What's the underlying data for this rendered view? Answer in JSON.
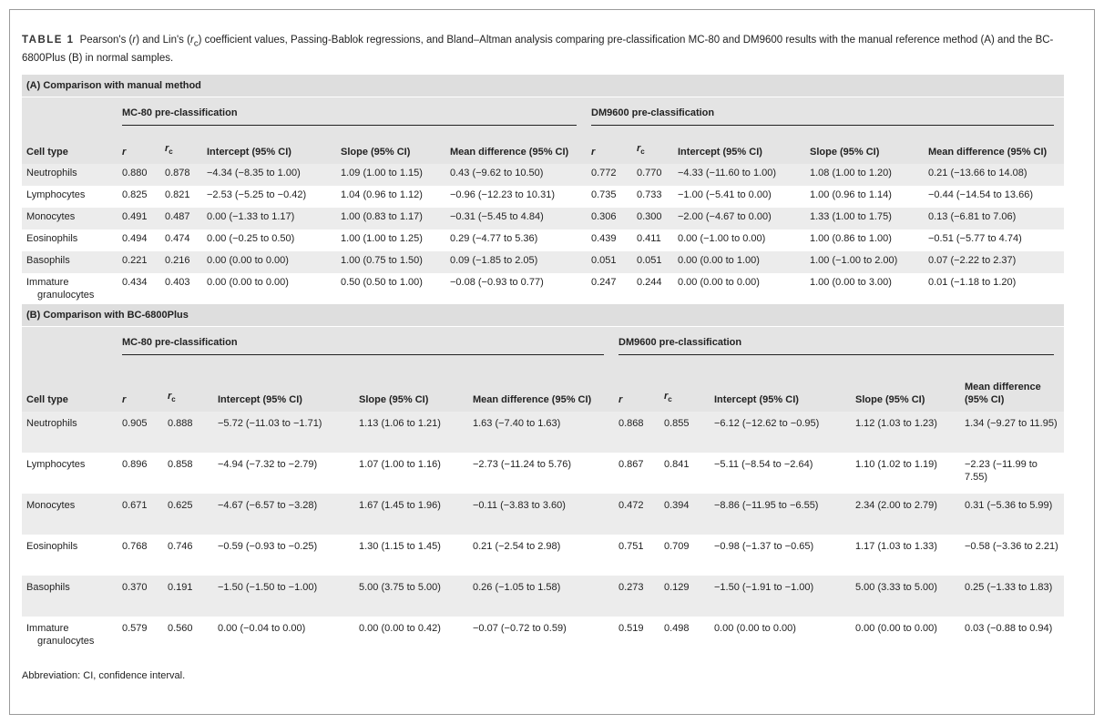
{
  "caption": {
    "label": "TABLE 1",
    "parts": [
      "Pearson's (",
      "r",
      ") and Lin's (",
      "r",
      "c",
      ") coefficient values, Passing-Bablok regressions, and Bland–Altman analysis comparing pre-classification MC-80 and DM9600 results with the manual reference method (A) and the BC-6800Plus (B) in normal samples."
    ]
  },
  "sections": [
    {
      "title": "(A) Comparison with manual method",
      "groups": [
        "MC-80 pre-classification",
        "DM9600 pre-classification"
      ],
      "columns": [
        "Cell type",
        "r",
        {
          "text": "r",
          "sub": "c"
        },
        "Intercept (95% CI)",
        "Slope (95% CI)",
        "Mean difference (95% CI)",
        "r",
        {
          "text": "r",
          "sub": "c"
        },
        "Intercept (95% CI)",
        "Slope (95% CI)",
        "Mean difference (95% CI)"
      ],
      "rows": [
        [
          "Neutrophils",
          "0.880",
          "0.878",
          "−4.34 (−8.35 to 1.00)",
          "1.09 (1.00 to 1.15)",
          "0.43 (−9.62 to 10.50)",
          "0.772",
          "0.770",
          "−4.33 (−11.60 to 1.00)",
          "1.08 (1.00 to 1.20)",
          "0.21 (−13.66 to 14.08)"
        ],
        [
          "Lymphocytes",
          "0.825",
          "0.821",
          "−2.53 (−5.25 to −0.42)",
          "1.04 (0.96 to 1.12)",
          "−0.96 (−12.23 to 10.31)",
          "0.735",
          "0.733",
          "−1.00 (−5.41 to 0.00)",
          "1.00 (0.96 to 1.14)",
          "−0.44 (−14.54 to 13.66)"
        ],
        [
          "Monocytes",
          "0.491",
          "0.487",
          "0.00 (−1.33 to 1.17)",
          "1.00 (0.83 to 1.17)",
          "−0.31 (−5.45 to 4.84)",
          "0.306",
          "0.300",
          "−2.00 (−4.67 to 0.00)",
          "1.33 (1.00 to 1.75)",
          "0.13 (−6.81 to 7.06)"
        ],
        [
          "Eosinophils",
          "0.494",
          "0.474",
          "0.00 (−0.25 to 0.50)",
          "1.00 (1.00 to 1.25)",
          "0.29 (−4.77 to 5.36)",
          "0.439",
          "0.411",
          "0.00 (−1.00 to 0.00)",
          "1.00 (0.86 to 1.00)",
          "−0.51 (−5.77 to 4.74)"
        ],
        [
          "Basophils",
          "0.221",
          "0.216",
          "0.00 (0.00 to 0.00)",
          "1.00 (0.75 to 1.50)",
          "0.09 (−1.85 to 2.05)",
          "0.051",
          "0.051",
          "0.00 (0.00 to 1.00)",
          "1.00 (−1.00 to 2.00)",
          "0.07 (−2.22 to 2.37)"
        ],
        [
          "Immature granulocytes",
          "0.434",
          "0.403",
          "0.00 (0.00 to 0.00)",
          "0.50 (0.50 to 1.00)",
          "−0.08 (−0.93 to 0.77)",
          "0.247",
          "0.244",
          "0.00 (0.00 to 0.00)",
          "1.00 (0.00 to 3.00)",
          "0.01 (−1.18 to 1.20)"
        ]
      ]
    },
    {
      "title": "(B) Comparison with BC-6800Plus",
      "groups": [
        "MC-80 pre-classification",
        "DM9600 pre-classification"
      ],
      "columns": [
        "Cell type",
        "r",
        {
          "text": "r",
          "sub": "c"
        },
        "Intercept (95% CI)",
        "Slope (95% CI)",
        "Mean difference (95% CI)",
        "r",
        {
          "text": "r",
          "sub": "c"
        },
        "Intercept (95% CI)",
        "Slope (95% CI)",
        "Mean difference (95% CI)"
      ],
      "rows": [
        [
          "Neutrophils",
          "0.905",
          "0.888",
          "−5.72 (−11.03 to −1.71)",
          "1.13 (1.06 to 1.21)",
          "1.63 (−7.40 to 1.63)",
          "0.868",
          "0.855",
          "−6.12 (−12.62 to −0.95)",
          "1.12 (1.03 to 1.23)",
          "1.34 (−9.27 to 11.95)"
        ],
        [
          "Lymphocytes",
          "0.896",
          "0.858",
          "−4.94 (−7.32 to −2.79)",
          "1.07 (1.00 to 1.16)",
          "−2.73 (−11.24 to 5.76)",
          "0.867",
          "0.841",
          "−5.11 (−8.54 to −2.64)",
          "1.10 (1.02 to 1.19)",
          "−2.23 (−11.99 to 7.55)"
        ],
        [
          "Monocytes",
          "0.671",
          "0.625",
          "−4.67 (−6.57 to −3.28)",
          "1.67 (1.45 to 1.96)",
          "−0.11 (−3.83 to 3.60)",
          "0.472",
          "0.394",
          "−8.86 (−11.95 to −6.55)",
          "2.34 (2.00 to 2.79)",
          "0.31 (−5.36 to 5.99)"
        ],
        [
          "Eosinophils",
          "0.768",
          "0.746",
          "−0.59 (−0.93 to −0.25)",
          "1.30 (1.15 to 1.45)",
          "0.21 (−2.54 to 2.98)",
          "0.751",
          "0.709",
          "−0.98 (−1.37 to −0.65)",
          "1.17 (1.03 to 1.33)",
          "−0.58 (−3.36 to 2.21)"
        ],
        [
          "Basophils",
          "0.370",
          "0.191",
          "−1.50 (−1.50 to −1.00)",
          "5.00 (3.75 to 5.00)",
          "0.26 (−1.05 to 1.58)",
          "0.273",
          "0.129",
          "−1.50 (−1.91 to −1.00)",
          "5.00 (3.33 to 5.00)",
          "0.25 (−1.33 to 1.83)"
        ],
        [
          "Immature granulocytes",
          "0.579",
          "0.560",
          "0.00 (−0.04 to 0.00)",
          "0.00 (0.00 to 0.42)",
          "−0.07 (−0.72 to 0.59)",
          "0.519",
          "0.498",
          "0.00 (0.00 to 0.00)",
          "0.00 (0.00 to 0.00)",
          "0.03 (−0.88 to 0.94)"
        ]
      ]
    }
  ],
  "footnote": "Abbreviation: CI, confidence interval."
}
